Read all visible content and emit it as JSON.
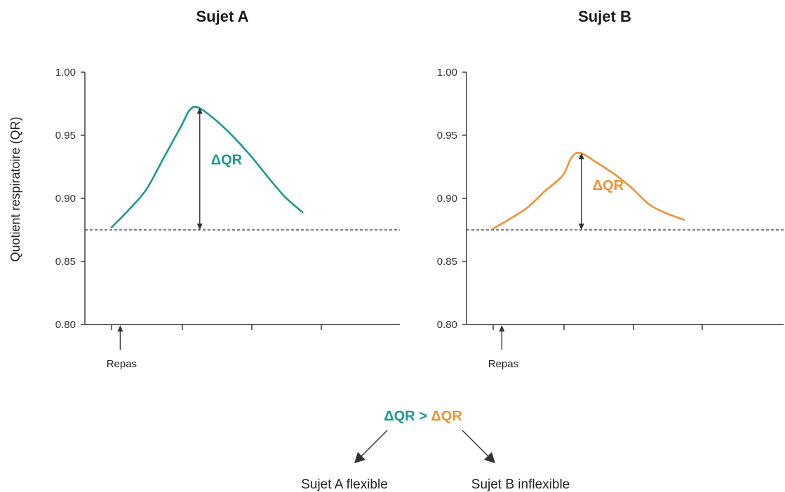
{
  "colors": {
    "subject_a": "#1a9a90",
    "subject_b": "#ee9233",
    "axis": "#333333"
  },
  "chart_data": [
    {
      "type": "line",
      "title": "Sujet A",
      "ylabel": "Quotient respiratoire (QR)",
      "ylim": [
        0.8,
        1.0
      ],
      "yticks": [
        "1.00",
        "0.95",
        "0.90",
        "0.85",
        "0.80"
      ],
      "x": [
        1,
        1.5,
        2,
        2.5,
        3,
        3.25,
        3.5,
        4,
        4.5,
        5,
        5.5,
        6,
        6.5
      ],
      "values": [
        0.877,
        0.891,
        0.907,
        0.932,
        0.957,
        0.97,
        0.972,
        0.962,
        0.949,
        0.934,
        0.917,
        0.901,
        0.889
      ],
      "baseline": 0.875,
      "meal_marker": {
        "x": 1.25,
        "label": "Repas"
      },
      "annotation": {
        "label": "ΔQR",
        "x": 3.5,
        "from": 0.875,
        "to": 0.972
      },
      "color": "#1a9a90"
    },
    {
      "type": "line",
      "title": "Sujet B",
      "ylabel": "",
      "ylim": [
        0.8,
        1.0
      ],
      "yticks": [
        "1.00",
        "0.95",
        "0.90",
        "0.85",
        "0.80"
      ],
      "x": [
        1,
        1.5,
        2,
        2.5,
        3,
        3.25,
        3.5,
        4,
        4.5,
        5,
        5.5,
        6,
        6.5
      ],
      "values": [
        0.876,
        0.884,
        0.893,
        0.906,
        0.918,
        0.932,
        0.936,
        0.928,
        0.919,
        0.908,
        0.895,
        0.888,
        0.883
      ],
      "baseline": 0.875,
      "meal_marker": {
        "x": 1.25,
        "label": "Repas"
      },
      "annotation": {
        "label": "ΔQR",
        "x": 3.5,
        "from": 0.875,
        "to": 0.936
      },
      "color": "#ee9233"
    }
  ],
  "conclusion": {
    "left": "ΔQR",
    "operator": ">",
    "right": "ΔQR",
    "left_result": "Sujet A flexible",
    "right_result": "Sujet B inflexible"
  }
}
